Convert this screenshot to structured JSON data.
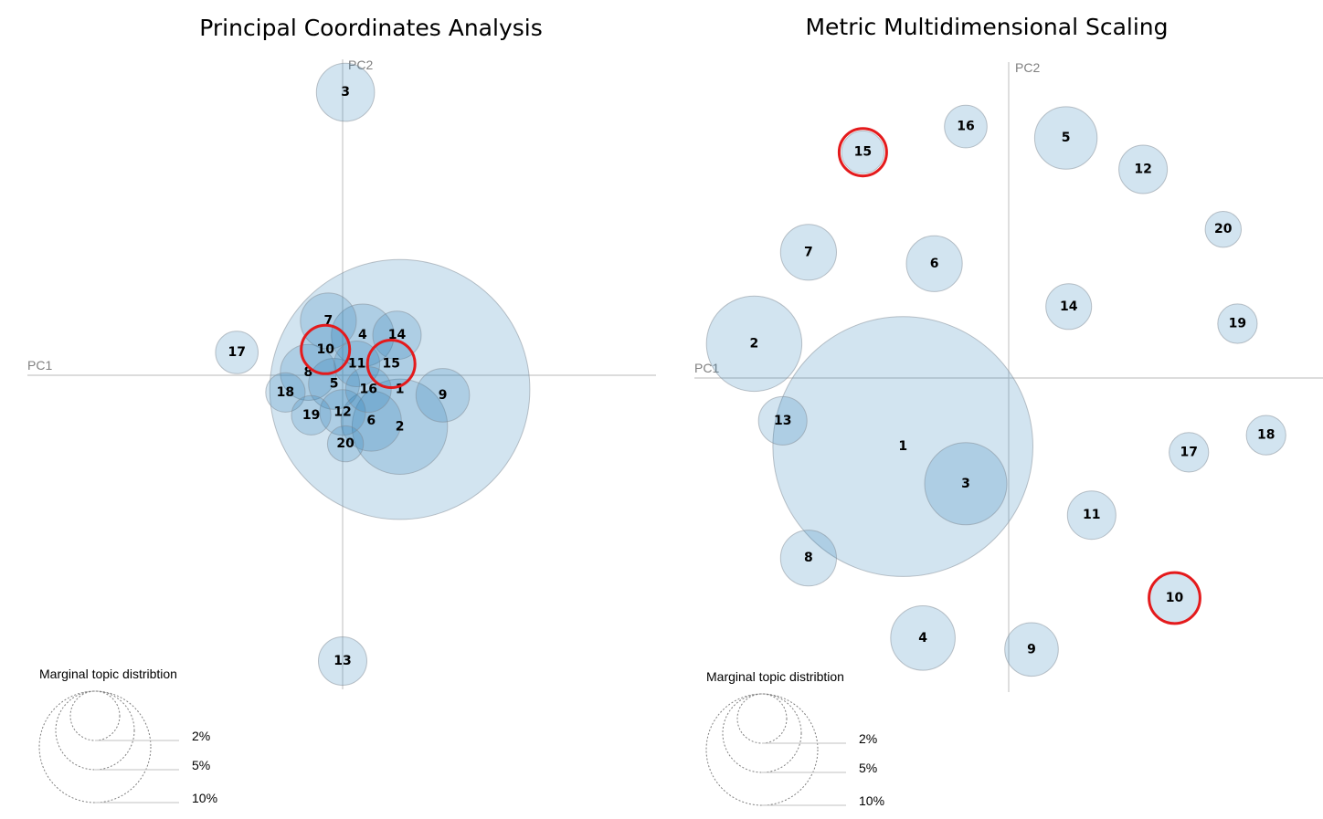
{
  "chart_data": [
    {
      "type": "scatter",
      "title": "Principal Coordinates Analysis",
      "xlabel": "PC1",
      "ylabel": "PC2",
      "highlighted": [
        "10",
        "15"
      ],
      "legend": {
        "title": "Marginal topic distribtion",
        "entries": [
          "2%",
          "5%",
          "10%"
        ]
      },
      "points": [
        {
          "label": "1",
          "x": 20,
          "y": -5,
          "size": 26
        },
        {
          "label": "2",
          "x": 20,
          "y": -18,
          "size": 3.5
        },
        {
          "label": "3",
          "x": 1,
          "y": 99,
          "size": 1.3
        },
        {
          "label": "4",
          "x": 7,
          "y": 14,
          "size": 1.5
        },
        {
          "label": "5",
          "x": -3,
          "y": -3,
          "size": 1.0
        },
        {
          "label": "6",
          "x": 10,
          "y": -16,
          "size": 1.4
        },
        {
          "label": "7",
          "x": -5,
          "y": 19,
          "size": 1.2
        },
        {
          "label": "8",
          "x": -12,
          "y": 1,
          "size": 1.2
        },
        {
          "label": "9",
          "x": 35,
          "y": -7,
          "size": 1.1
        },
        {
          "label": "10",
          "x": -6,
          "y": 9,
          "size": 0.9
        },
        {
          "label": "11",
          "x": 5,
          "y": 4,
          "size": 0.8
        },
        {
          "label": "12",
          "x": 0,
          "y": -13,
          "size": 0.8
        },
        {
          "label": "13",
          "x": 0,
          "y": -100,
          "size": 0.9
        },
        {
          "label": "14",
          "x": 19,
          "y": 14,
          "size": 0.9
        },
        {
          "label": "15",
          "x": 17,
          "y": 4,
          "size": 0.8
        },
        {
          "label": "16",
          "x": 9,
          "y": -5,
          "size": 0.8
        },
        {
          "label": "17",
          "x": -37,
          "y": 8,
          "size": 0.7
        },
        {
          "label": "18",
          "x": -20,
          "y": -6,
          "size": 0.6
        },
        {
          "label": "19",
          "x": -11,
          "y": -14,
          "size": 0.6
        },
        {
          "label": "20",
          "x": 1,
          "y": -24,
          "size": 0.5
        }
      ]
    },
    {
      "type": "scatter",
      "title": "Metric Multidimensional Scaling",
      "xlabel": "PC1",
      "ylabel": "PC2",
      "highlighted": [
        "15",
        "10"
      ],
      "legend": {
        "title": "Marginal topic distribtion",
        "entries": [
          "2%",
          "5%",
          "10%"
        ]
      },
      "points": [
        {
          "label": "1",
          "x": -37,
          "y": -24,
          "size": 26
        },
        {
          "label": "2",
          "x": -89,
          "y": 12,
          "size": 3.5
        },
        {
          "label": "3",
          "x": -15,
          "y": -37,
          "size": 2.6
        },
        {
          "label": "4",
          "x": -30,
          "y": -91,
          "size": 1.6
        },
        {
          "label": "5",
          "x": 20,
          "y": 84,
          "size": 1.5
        },
        {
          "label": "6",
          "x": -26,
          "y": 40,
          "size": 1.2
        },
        {
          "label": "7",
          "x": -70,
          "y": 44,
          "size": 1.2
        },
        {
          "label": "8",
          "x": -70,
          "y": -63,
          "size": 1.2
        },
        {
          "label": "9",
          "x": 8,
          "y": -95,
          "size": 1.1
        },
        {
          "label": "10",
          "x": 58,
          "y": -77,
          "size": 1.0
        },
        {
          "label": "11",
          "x": 29,
          "y": -48,
          "size": 0.9
        },
        {
          "label": "12",
          "x": 47,
          "y": 73,
          "size": 0.9
        },
        {
          "label": "13",
          "x": -79,
          "y": -15,
          "size": 0.9
        },
        {
          "label": "14",
          "x": 21,
          "y": 25,
          "size": 0.8
        },
        {
          "label": "15",
          "x": -51,
          "y": 79,
          "size": 0.7
        },
        {
          "label": "16",
          "x": -15,
          "y": 88,
          "size": 0.7
        },
        {
          "label": "17",
          "x": 63,
          "y": -26,
          "size": 0.6
        },
        {
          "label": "18",
          "x": 90,
          "y": -20,
          "size": 0.6
        },
        {
          "label": "19",
          "x": 80,
          "y": 19,
          "size": 0.6
        },
        {
          "label": "20",
          "x": 75,
          "y": 52,
          "size": 0.5
        }
      ]
    }
  ]
}
